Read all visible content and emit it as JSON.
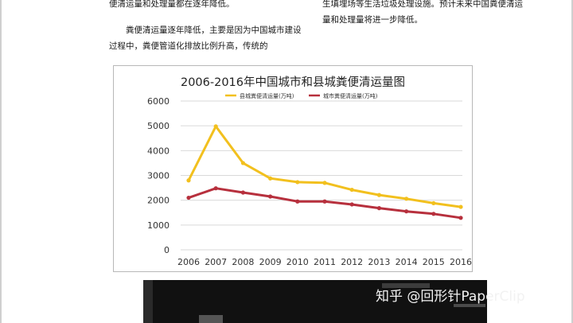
{
  "text": {
    "left_top": "便清运量和处理量都在逐年降低。",
    "left_para": "粪便清运量逐年降低，主要是因为中国城市建设过程中，粪便管道化排放比例升高，传统的",
    "right_top": "生填埋场等生活垃圾处理设施。预计未来中国粪便清运量和处理量将进一步降低。"
  },
  "watermark": "知乎 @回形针PaperClip",
  "chart_data": {
    "type": "line",
    "title": "2006-2016年中国城市和县城粪便清运量图",
    "xlabel": "",
    "ylabel": "",
    "x": [
      "2006",
      "2007",
      "2008",
      "2009",
      "2010",
      "2011",
      "2012",
      "2013",
      "2014",
      "2015",
      "2016"
    ],
    "y_ticks": [
      "0",
      "1000",
      "2000",
      "3000",
      "4000",
      "5000",
      "6000"
    ],
    "ylim": [
      0,
      6000
    ],
    "grid": true,
    "legend_position": "top-center",
    "series": [
      {
        "name": "县城粪便清运量(万吨)",
        "color": "#f2c01e",
        "values": [
          2800,
          4980,
          3500,
          2880,
          2730,
          2700,
          2420,
          2210,
          2060,
          1880,
          1730
        ]
      },
      {
        "name": "城市粪便清运量(万吨)",
        "color": "#b7303d",
        "values": [
          2100,
          2480,
          2310,
          2150,
          1950,
          1950,
          1830,
          1680,
          1550,
          1450,
          1290
        ]
      }
    ]
  }
}
